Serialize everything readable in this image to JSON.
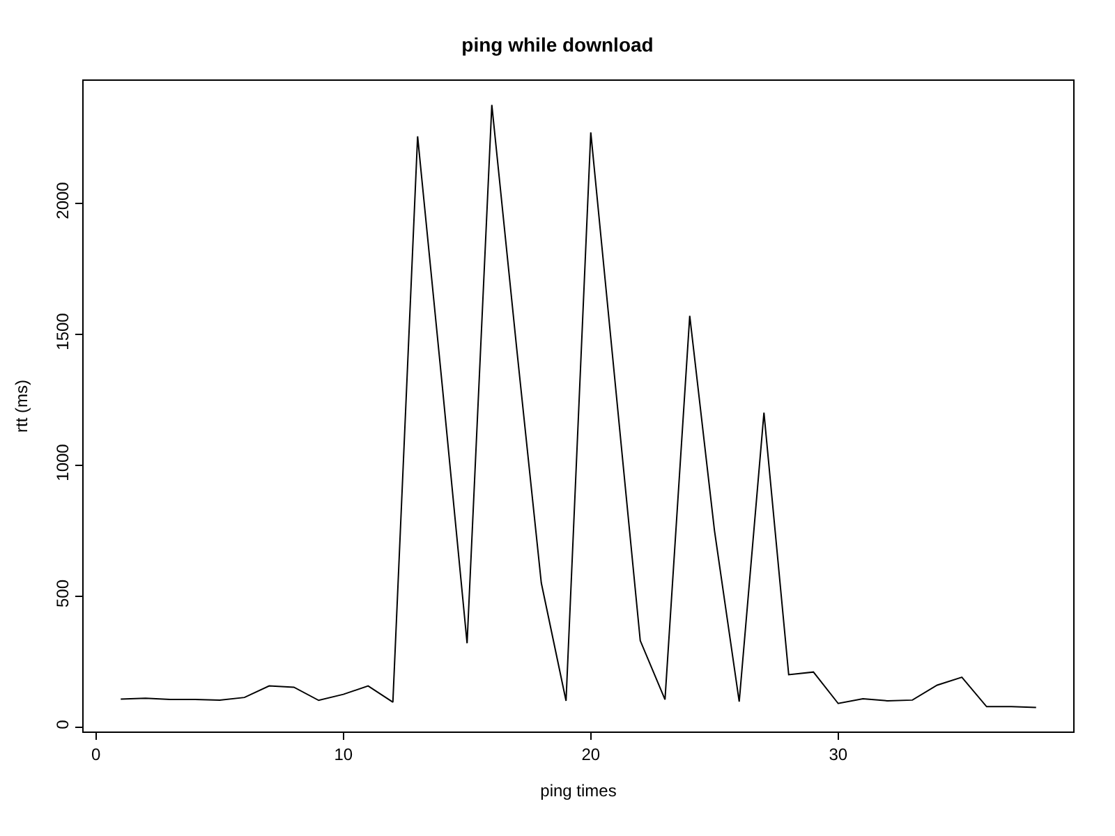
{
  "chart_data": {
    "type": "line",
    "title": "ping while download",
    "xlabel": "ping times",
    "ylabel": "rtt (ms)",
    "x": [
      1,
      2,
      3,
      4,
      5,
      6,
      7,
      8,
      9,
      10,
      11,
      12,
      13,
      14,
      15,
      16,
      17,
      18,
      19,
      20,
      21,
      22,
      23,
      24,
      25,
      26,
      27,
      28,
      29,
      30,
      31,
      32,
      33,
      34,
      35,
      36,
      37,
      38
    ],
    "series": [
      {
        "color": "#000000",
        "values": [
          107,
          110,
          105,
          105,
          103,
          113,
          157,
          152,
          102,
          125,
          157,
          95,
          2255,
          1300,
          320,
          2375,
          1450,
          550,
          100,
          2270,
          1300,
          330,
          105,
          1570,
          750,
          97,
          1200,
          200,
          210,
          90,
          108,
          100,
          103,
          160,
          190,
          78,
          78,
          75
        ]
      }
    ],
    "xlim": [
      -0.5,
      39.5
    ],
    "ylim": [
      -17,
      2467
    ],
    "xticks": [
      0,
      10,
      20,
      30
    ],
    "yticks": [
      0,
      500,
      1000,
      1500,
      2000
    ],
    "marker": "none",
    "line_style": "solid"
  }
}
